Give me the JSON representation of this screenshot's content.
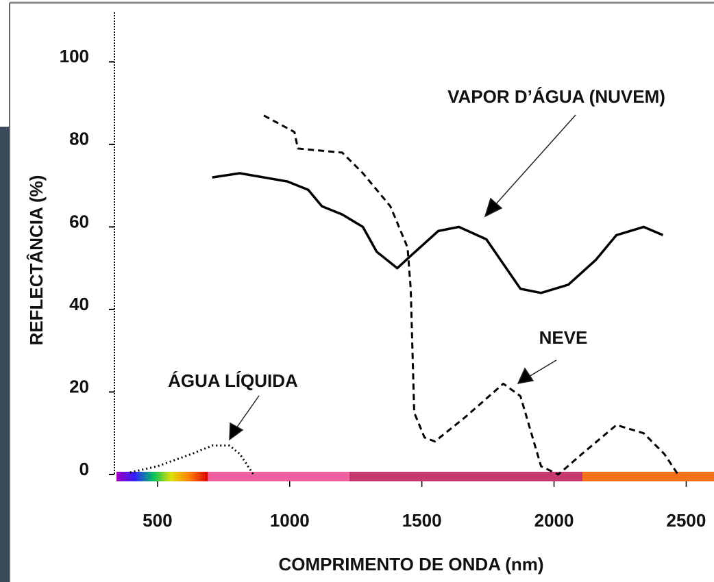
{
  "chart_data": {
    "type": "line",
    "xlabel": "COMPRIMENTO DE ONDA (nm)",
    "ylabel": "REFLECTÂNCIA (%)",
    "xlim": [
      337,
      2600
    ],
    "ylim": [
      0,
      112
    ],
    "xticks": [
      500,
      1000,
      1500,
      2000,
      2500
    ],
    "yticks": [
      0,
      20,
      40,
      60,
      80,
      100
    ],
    "series": [
      {
        "name": "VAPOR D’ÁGUA (NUVEM)",
        "color": "#000000",
        "linestyle": "solid",
        "x": [
          707,
          811,
          992,
          1070,
          1122,
          1199,
          1277,
          1329,
          1407,
          1458,
          1562,
          1640,
          1744,
          1873,
          1951,
          2054,
          2158,
          2236,
          2339,
          2412
        ],
        "values": [
          72,
          73,
          71,
          69,
          65,
          63,
          60,
          54,
          50,
          53,
          59,
          60,
          57,
          45,
          44,
          46,
          52,
          58,
          60,
          58
        ]
      },
      {
        "name": "NEVE",
        "color": "#000000",
        "linestyle": "dashed",
        "x": [
          902,
          1018,
          1031,
          1199,
          1277,
          1381,
          1446,
          1458,
          1471,
          1510,
          1549,
          1666,
          1808,
          1873,
          1951,
          2016,
          2106,
          2236,
          2339,
          2417,
          2469
        ],
        "values": [
          87,
          83,
          79,
          78,
          73,
          65,
          55,
          45,
          15,
          9,
          8,
          14,
          22,
          19,
          2,
          0,
          5,
          12,
          10,
          5,
          0
        ]
      },
      {
        "name": "ÁGUA LÍQUIDA",
        "color": "#000000",
        "linestyle": "dotted",
        "x": [
          396,
          500,
          630,
          707,
          772,
          811,
          863
        ],
        "values": [
          0.5,
          2,
          5,
          7,
          7,
          5,
          0
        ]
      }
    ]
  }
}
